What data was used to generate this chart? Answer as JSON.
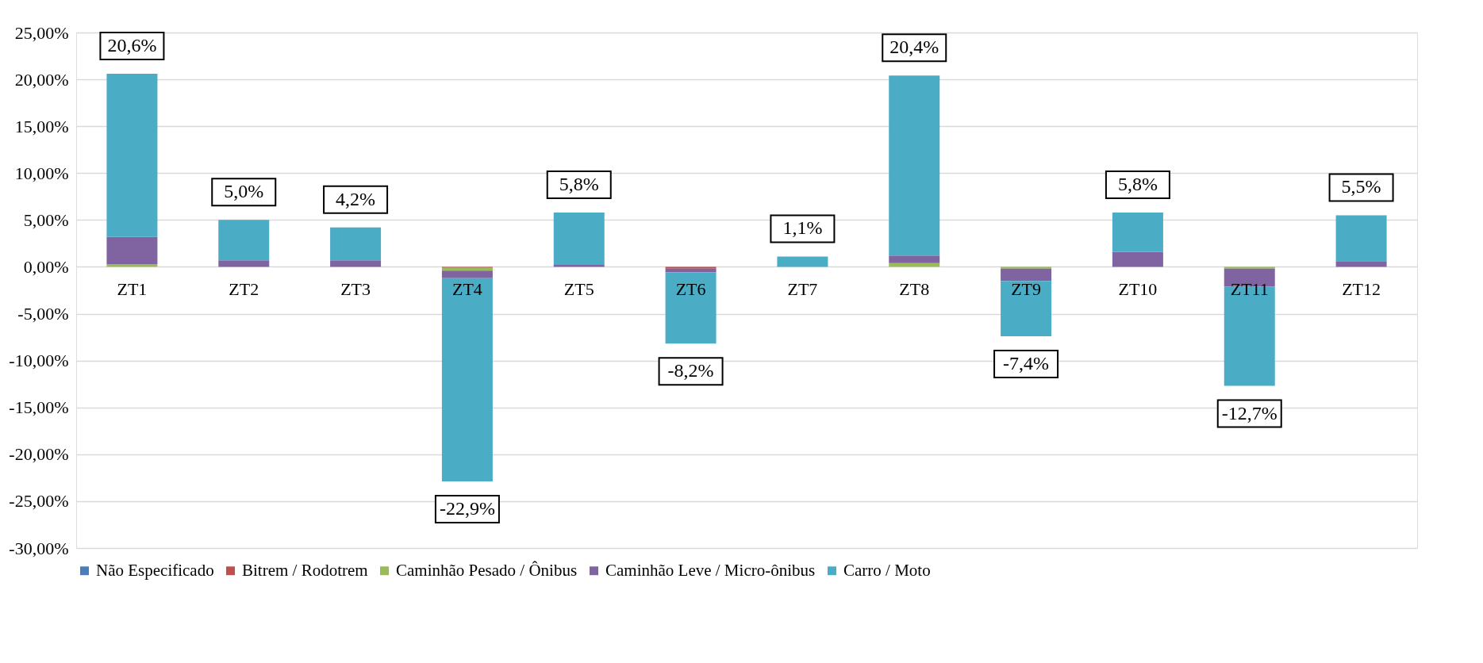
{
  "chart_data": {
    "type": "bar",
    "stacked": true,
    "categories": [
      "ZT1",
      "ZT2",
      "ZT3",
      "ZT4",
      "ZT5",
      "ZT6",
      "ZT7",
      "ZT8",
      "ZT9",
      "ZT10",
      "ZT11",
      "ZT12"
    ],
    "series": [
      {
        "name": "Não Especificado",
        "color": "#4a7ebb",
        "values": [
          null,
          null,
          null,
          null,
          null,
          null,
          null,
          null,
          null,
          null,
          null,
          null
        ]
      },
      {
        "name": "Bitrem / Rodotrem",
        "color": "#c0504d",
        "values": [
          null,
          null,
          null,
          -0.1,
          null,
          -0.2,
          null,
          null,
          null,
          null,
          null,
          null
        ]
      },
      {
        "name": "Caminhão Pesado / Ônibus",
        "color": "#9bbb59",
        "values": [
          0.3,
          null,
          null,
          -0.3,
          null,
          null,
          null,
          0.4,
          -0.2,
          null,
          -0.2,
          null
        ]
      },
      {
        "name": "Caminhão Leve / Micro-ônibus",
        "color": "#8064a2",
        "values": [
          2.9,
          0.7,
          0.7,
          -0.8,
          0.2,
          -0.4,
          null,
          0.8,
          -1.3,
          1.6,
          -1.9,
          0.6
        ]
      },
      {
        "name": "Carro / Moto",
        "color": "#4bacc6",
        "values": [
          17.4,
          4.3,
          3.5,
          -21.7,
          5.6,
          -7.6,
          1.1,
          19.2,
          -5.9,
          4.2,
          -10.6,
          4.9
        ]
      }
    ],
    "totals": [
      "20,6%",
      "5,0%",
      "4,2%",
      "-22,9%",
      "5,8%",
      "-8,2%",
      "1,1%",
      "20,4%",
      "-7,4%",
      "5,8%",
      "-12,7%",
      "5,5%"
    ],
    "ylim": [
      -30,
      25
    ],
    "yticks": [
      {
        "value": -30,
        "label": "-30,00%"
      },
      {
        "value": -25,
        "label": "-25,00%"
      },
      {
        "value": -20,
        "label": "-20,00%"
      },
      {
        "value": -15,
        "label": "-15,00%"
      },
      {
        "value": -10,
        "label": "-10,00%"
      },
      {
        "value": -5,
        "label": "-5,00%"
      },
      {
        "value": 0,
        "label": "0,00%"
      },
      {
        "value": 5,
        "label": "5,00%"
      },
      {
        "value": 10,
        "label": "10,00%"
      },
      {
        "value": 15,
        "label": "15,00%"
      },
      {
        "value": 20,
        "label": "20,00%"
      },
      {
        "value": 25,
        "label": "25,00%"
      }
    ],
    "grid": "y",
    "legend": "bottom"
  }
}
